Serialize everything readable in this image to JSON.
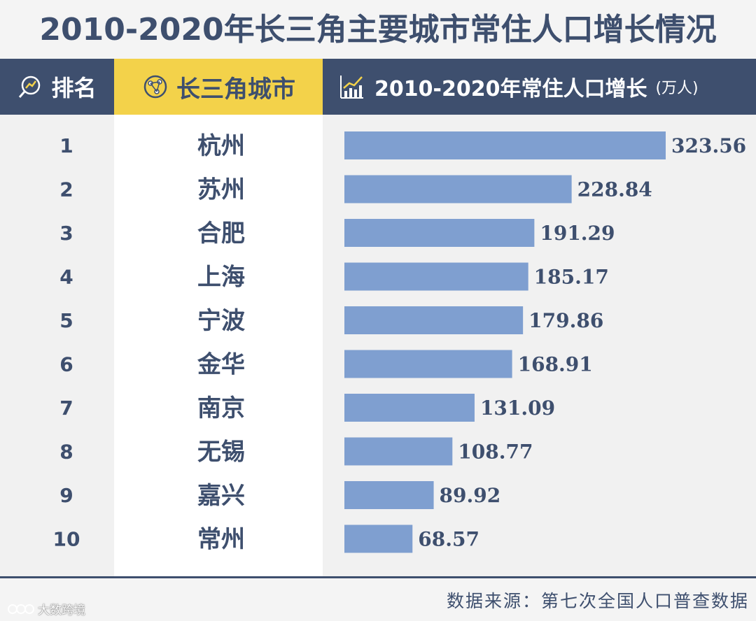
{
  "chart_data": {
    "type": "bar",
    "orientation": "horizontal",
    "title": "2010-2020年长三角主要城市常住人口增长情况",
    "columns": {
      "rank": "排名",
      "city": "长三角城市",
      "value": "2010-2020年常住人口增长",
      "unit": "(万人)"
    },
    "ranks": [
      "1",
      "2",
      "3",
      "4",
      "5",
      "6",
      "7",
      "8",
      "9",
      "10"
    ],
    "categories": [
      "杭州",
      "苏州",
      "合肥",
      "上海",
      "宁波",
      "金华",
      "南京",
      "无锡",
      "嘉兴",
      "常州"
    ],
    "values": [
      323.56,
      228.84,
      191.29,
      185.17,
      179.86,
      168.91,
      131.09,
      108.77,
      89.92,
      68.57
    ],
    "value_labels": [
      "323.56",
      "228.84",
      "191.29",
      "185.17",
      "179.86",
      "168.91",
      "131.09",
      "108.77",
      "89.92",
      "68.57"
    ],
    "xlim": [
      0,
      323.56
    ],
    "bar_color": "#7f9fd0"
  },
  "footer": {
    "source": "数据来源：第七次全国人口普查数据",
    "watermark": "大数跨境"
  },
  "colors": {
    "header_dark": "#3e4f6e",
    "header_yellow": "#f3d24a",
    "text": "#3e4f6e"
  }
}
